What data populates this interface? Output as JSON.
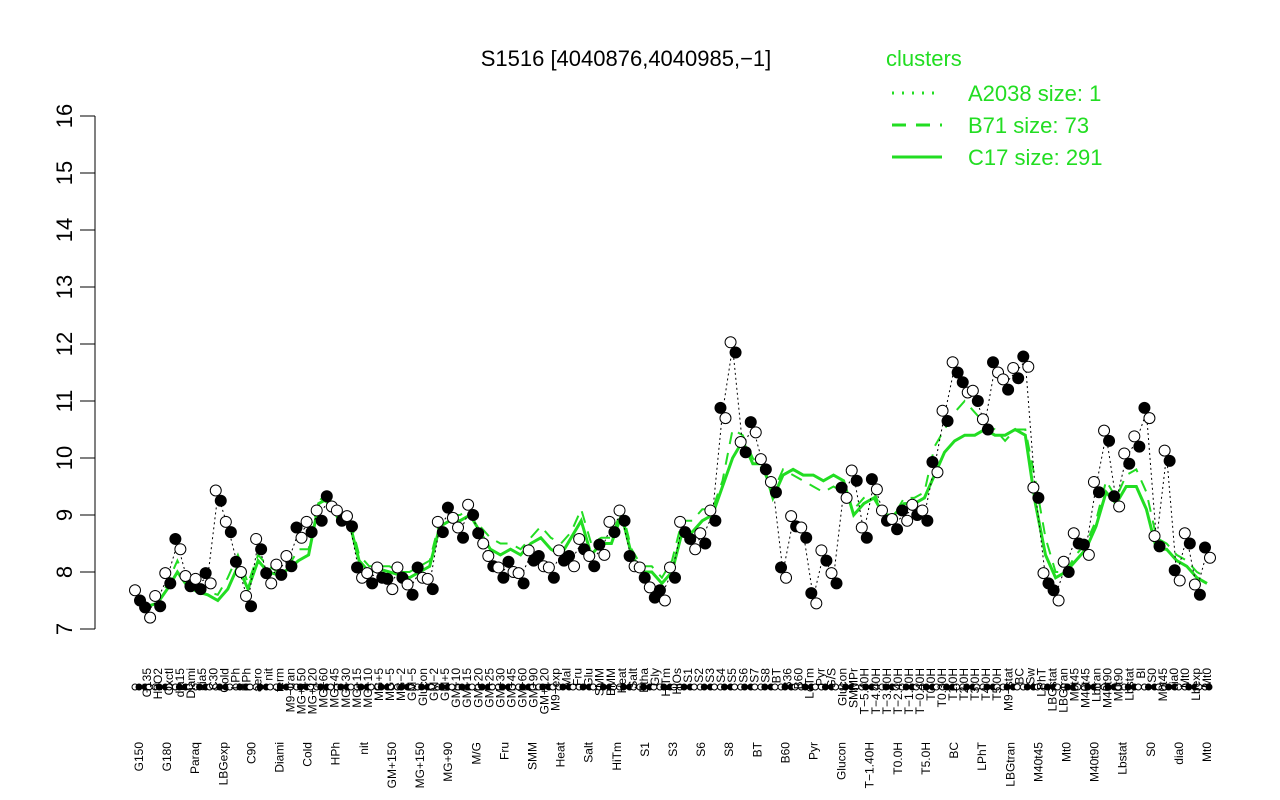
{
  "chart_data": {
    "type": "line",
    "title": "S1516 [4040876,4040985,−1]",
    "xlabel": "",
    "ylabel": "",
    "ylim": [
      7,
      16
    ],
    "yticks": [
      7,
      8,
      9,
      10,
      11,
      12,
      13,
      14,
      15,
      16
    ],
    "grid": false,
    "legend": {
      "title": "clusters",
      "placement": "top-right",
      "entries": [
        {
          "label": "A2038 size: 1",
          "style": "dotted"
        },
        {
          "label": "B71 size: 73",
          "style": "dashed"
        },
        {
          "label": "C17 size: 291",
          "style": "solid"
        }
      ]
    },
    "colors": {
      "series": "#22dd22",
      "points_open": "#ffffff",
      "points_filled": "#000000"
    },
    "x_tick_labels": [
      "G150",
      "G180",
      "G135",
      "Paraq",
      "H2O2",
      "Oxctl",
      "LBGexp",
      "dia15",
      "Diami",
      "dia5",
      "C90",
      "C30",
      "Cold",
      "LPh",
      "HPh",
      "aero",
      "nit",
      "ferm",
      "GM+150",
      "M9−tran",
      "MG+150",
      "MG+120",
      "MG+90",
      "MG+60",
      "MG+45",
      "MG+30",
      "MG+25",
      "MG+15",
      "MG+10",
      "MG+5",
      "MG−5",
      "MG−2",
      "GM−5",
      "Glucon",
      "GM−2",
      "GM+5",
      "GM+10",
      "GM+15",
      "GM+20",
      "GM+25",
      "GM+30",
      "GM+45",
      "GM+60",
      "GM+90",
      "GM+120",
      "M9−exp",
      "M/G",
      "Mal",
      "Fru",
      "Glu",
      "SMM",
      "BMM",
      "Heat",
      "Salt",
      "Etha",
      "Gly",
      "HiTm",
      "HiOs",
      "S1",
      "S2",
      "S3",
      "S4",
      "S5",
      "S6",
      "S7",
      "S8",
      "BT",
      "B36",
      "B60",
      "LoTm",
      "Pyr",
      "G/S",
      "Glucon",
      "SMMPr",
      "T−5.40H",
      "T−4.40H",
      "T−3.40H",
      "T−2.40H",
      "T−1.40H",
      "T−0.40H",
      "T0.0H",
      "T0.30H",
      "T1.0H",
      "T2.0H",
      "T3.0H",
      "T4.0H",
      "T5.0H",
      "M9−stat",
      "BC",
      "Sw",
      "LPhT",
      "LBGstat",
      "LBGtran",
      "M0t45",
      "M40t45",
      "Mt0",
      "Lbtran",
      "M40t90",
      "M0t90",
      "Lbstat",
      "Bl",
      "S0",
      "M0t45",
      "dia0",
      "Mt0",
      "Lbexp",
      "Mt0"
    ],
    "x_tick_labels_top": [
      "G135",
      "H2O2",
      "Oxctl",
      "dia15",
      "Diami",
      "dia5",
      "C30",
      "Cold",
      "LPh",
      "HPh",
      "aero",
      "nit",
      "ferm",
      "M9−tran",
      "MG+150",
      "MG+120",
      "MG+60",
      "MG+45",
      "MG+30",
      "MG+15",
      "MG+10",
      "MG+5",
      "MG−5",
      "MG−2",
      "GM−5",
      "Glucon",
      "GM−2",
      "GM+5",
      "GM+10",
      "GM+15",
      "GM+20",
      "GM+25",
      "GM+30",
      "GM+45",
      "GM+60",
      "GM+90",
      "GM+120",
      "M9−exp",
      "Mal",
      "Fru",
      "Glu",
      "SMM",
      "BMM",
      "Heat",
      "Salt",
      "Etha",
      "Gly",
      "HiTm",
      "HiOs",
      "S1",
      "S2",
      "S3",
      "S4",
      "S5",
      "S6",
      "S7",
      "S8",
      "BT",
      "B36",
      "B60",
      "LoTm",
      "Pyr",
      "G/S",
      "Glucon",
      "SMMPr",
      "T−5.40H",
      "T−4.40H",
      "T−3.40H",
      "T−2.40H",
      "T−1.40H",
      "T−0.40H",
      "T0.0H",
      "T0.30H",
      "T1.0H",
      "T2.0H",
      "T3.0H",
      "T4.0H",
      "T5.0H",
      "M9−stat",
      "BC",
      "Sw",
      "LPhT",
      "LBGstat",
      "LBGtran",
      "M0t45",
      "M40t45",
      "Lbtran",
      "M40t90",
      "M0t90",
      "Lbstat",
      "Bl",
      "S0",
      "M0t45",
      "dia0",
      "Mt0",
      "Lbexp",
      "Mt0"
    ],
    "x_tick_labels_bottom": [
      "G150",
      "G180",
      "Paraq",
      "LBGexp",
      "C90",
      "Diami",
      "Cold",
      "HPh",
      "nit",
      "GM+150",
      "MG+150",
      "MG+90",
      "M/G",
      "Fru",
      "SMM",
      "Heat",
      "Salt",
      "HiTm",
      "S1",
      "S3",
      "S6",
      "S8",
      "BT",
      "B60",
      "Pyr",
      "Glucon",
      "T−1.40H",
      "T0.0H",
      "T5.0H",
      "BC",
      "LPhT",
      "LBGtran",
      "M40t45",
      "Mt0",
      "M40t90",
      "Lbstat",
      "S0",
      "dia0",
      "Mt0"
    ],
    "series": [
      {
        "name": "C17 size: 291",
        "style": "solid",
        "values": [
          7.5,
          7.4,
          7.45,
          7.7,
          8.0,
          7.75,
          7.65,
          7.6,
          7.5,
          7.7,
          8.1,
          7.7,
          8.2,
          8.0,
          7.95,
          8.05,
          8.2,
          8.3,
          9.2,
          9.3,
          8.9,
          8.9,
          8.2,
          8.0,
          8.05,
          8.0,
          7.95,
          7.9,
          8.0,
          8.1,
          8.8,
          8.9,
          8.9,
          9.0,
          8.7,
          8.4,
          8.3,
          8.4,
          8.3,
          8.5,
          8.6,
          8.4,
          8.3,
          8.6,
          8.9,
          8.3,
          8.5,
          8.5,
          9.0,
          8.3,
          8.0,
          8.0,
          7.8,
          8.0,
          8.7,
          8.7,
          8.9,
          9.0,
          9.5,
          10.0,
          10.3,
          9.9,
          9.9,
          9.3,
          9.7,
          9.8,
          9.7,
          9.7,
          9.6,
          9.7,
          9.6,
          9.0,
          9.2,
          9.3,
          9.0,
          9.0,
          9.2,
          9.2,
          9.3,
          9.7,
          10.1,
          10.3,
          10.4,
          10.4,
          10.5,
          10.4,
          10.4,
          10.5,
          10.4,
          9.2,
          8.3,
          7.9,
          8.0,
          8.2,
          8.4,
          8.8,
          9.4,
          9.2,
          9.5,
          9.5,
          9.1,
          8.4,
          8.4,
          8.2,
          8.1,
          7.9,
          7.8
        ]
      },
      {
        "name": "B71 size: 73",
        "style": "dashed",
        "values": [
          7.45,
          7.35,
          7.4,
          7.8,
          8.2,
          7.8,
          7.7,
          7.65,
          7.6,
          7.9,
          8.3,
          7.8,
          8.3,
          8.1,
          8.0,
          8.1,
          8.4,
          8.4,
          9.3,
          9.2,
          9.0,
          9.0,
          8.3,
          8.1,
          8.1,
          8.1,
          8.0,
          8.0,
          8.1,
          8.2,
          8.9,
          9.0,
          9.0,
          9.1,
          8.8,
          8.6,
          8.5,
          8.5,
          8.4,
          8.6,
          8.8,
          8.6,
          8.5,
          8.7,
          9.1,
          8.5,
          8.6,
          8.6,
          9.1,
          8.4,
          8.1,
          8.1,
          7.9,
          8.2,
          8.9,
          8.9,
          9.1,
          9.1,
          9.6,
          10.5,
          10.4,
          10.0,
          9.8,
          9.4,
          9.8,
          9.7,
          9.6,
          9.5,
          9.4,
          9.5,
          9.4,
          9.1,
          9.3,
          9.4,
          9.0,
          9.0,
          9.3,
          9.3,
          9.4,
          10.2,
          10.5,
          10.8,
          11.0,
          10.8,
          10.6,
          10.5,
          10.3,
          10.5,
          10.5,
          9.6,
          8.6,
          8.0,
          8.0,
          8.3,
          8.5,
          8.9,
          9.6,
          9.3,
          9.7,
          9.8,
          9.4,
          8.6,
          8.5,
          8.3,
          8.2,
          8.0,
          7.9
        ]
      },
      {
        "name": "A2038 size: 1",
        "style": "dotted",
        "values": [
          7.6,
          7.3,
          7.5,
          7.9,
          8.5,
          7.85,
          7.8,
          7.9,
          9.35,
          8.8,
          8.1,
          7.5,
          8.5,
          7.9,
          8.05,
          8.2,
          8.7,
          8.8,
          9.0,
          9.25,
          9.0,
          8.9,
          8.0,
          7.9,
          8.0,
          7.8,
          8.0,
          7.7,
          8.0,
          7.8,
          8.8,
          9.05,
          8.7,
          9.1,
          8.6,
          8.2,
          8.0,
          8.1,
          7.9,
          8.3,
          8.2,
          8.0,
          8.3,
          8.2,
          8.5,
          8.2,
          8.4,
          8.8,
          9.0,
          8.2,
          8.0,
          7.65,
          7.6,
          8.0,
          8.8,
          8.5,
          8.6,
          9.0,
          10.8,
          11.95,
          10.2,
          10.55,
          9.9,
          9.5,
          8.0,
          8.9,
          8.7,
          7.55,
          8.3,
          7.9,
          9.4,
          9.7,
          8.7,
          9.55,
          9.0,
          8.85,
          9.0,
          9.1,
          9.0,
          9.85,
          10.75,
          11.6,
          11.25,
          11.1,
          10.6,
          11.6,
          11.3,
          11.5,
          11.7,
          9.4,
          7.9,
          7.6,
          8.1,
          8.6,
          8.4,
          9.5,
          10.4,
          9.25,
          10.0,
          10.3,
          10.8,
          8.55,
          10.05,
          7.95,
          8.6,
          7.7,
          8.35
        ]
      }
    ]
  }
}
